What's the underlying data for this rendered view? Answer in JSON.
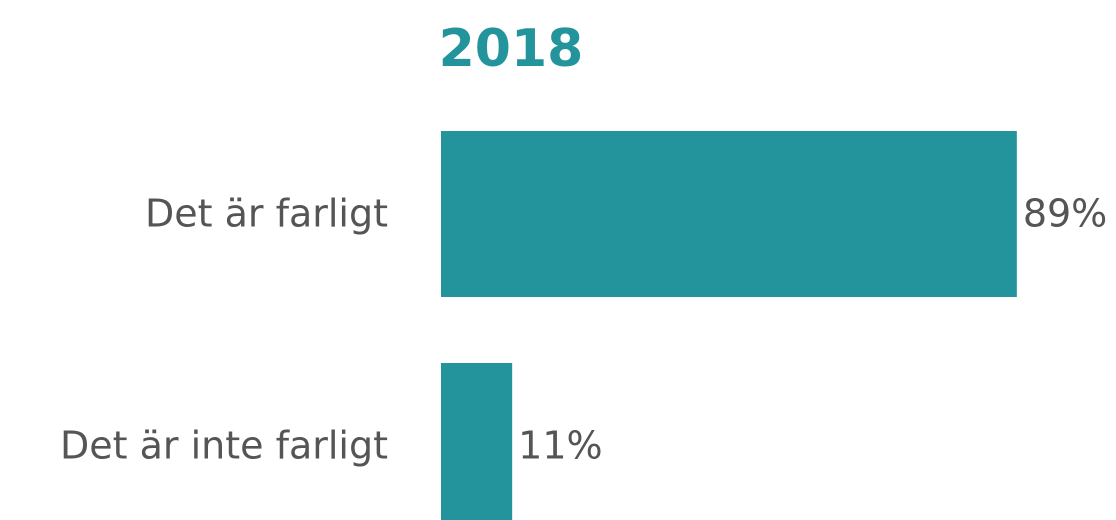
{
  "chart_data": {
    "type": "bar",
    "orientation": "horizontal",
    "title": "2018",
    "categories": [
      "Det är farligt",
      "Det är inte farligt"
    ],
    "values": [
      89,
      11
    ],
    "value_labels": [
      "89%",
      "11%"
    ],
    "color": "#23949b"
  }
}
